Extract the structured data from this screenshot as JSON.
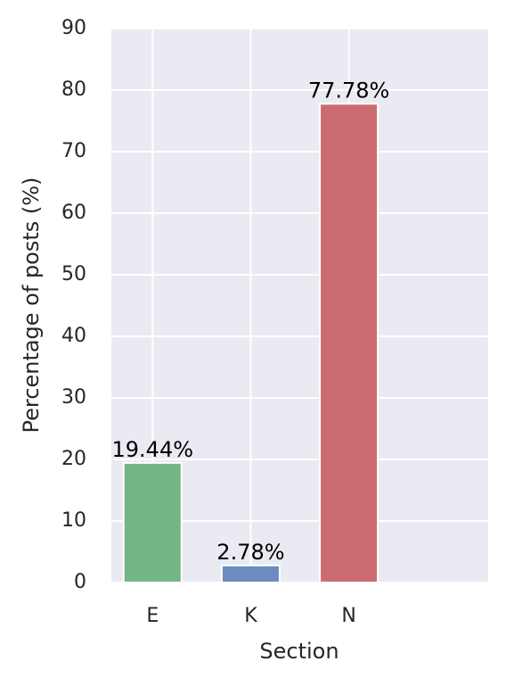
{
  "chart_data": {
    "type": "bar",
    "categories": [
      "E",
      "K",
      "N"
    ],
    "values": [
      19.44,
      2.78,
      77.78
    ],
    "value_labels": [
      "19.44%",
      "2.78%",
      "77.78%"
    ],
    "colors": [
      "#74b584",
      "#6c8bc0",
      "#cc6b6f"
    ],
    "xlabel": "Section",
    "ylabel": "Percentage of posts (%)",
    "ylim": [
      0,
      90
    ],
    "yticks": [
      0,
      10,
      20,
      30,
      40,
      50,
      60,
      70,
      80,
      90
    ],
    "grid": true
  }
}
